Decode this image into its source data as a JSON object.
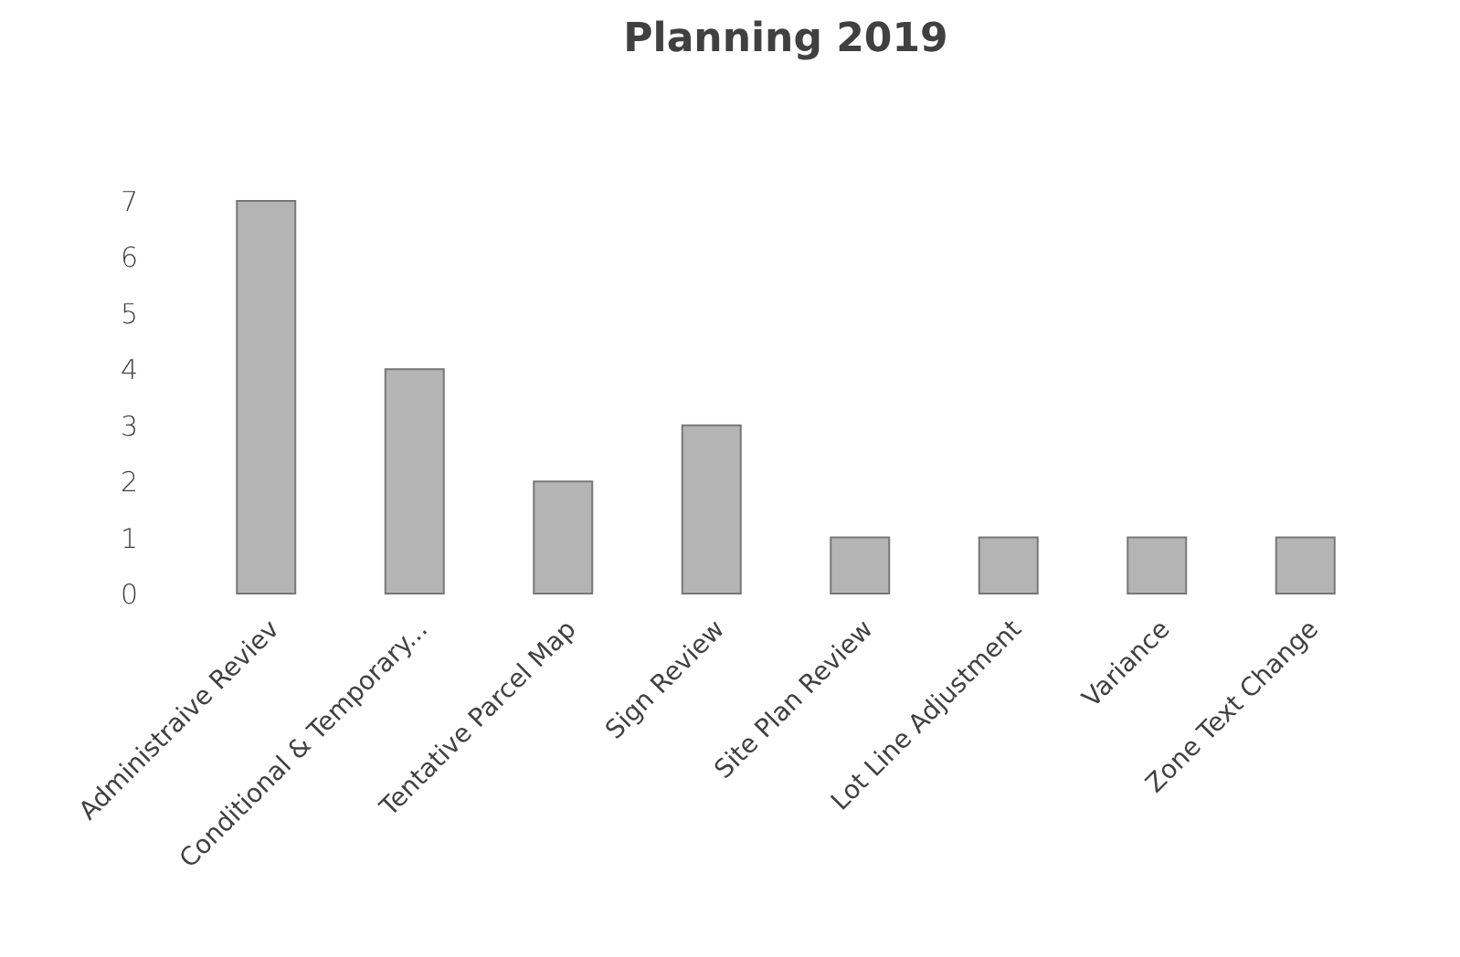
{
  "chart_data": {
    "type": "bar",
    "title": "Planning 2019",
    "categories": [
      "Administraive Reviev",
      "Conditional & Temporary...",
      "Tentative Parcel Map",
      "Sign Review",
      "Site Plan Review",
      "Lot Line Adjustment",
      "Variance",
      "Zone Text Change"
    ],
    "values": [
      7,
      4,
      2,
      3,
      1,
      1,
      1,
      1
    ],
    "color": "#b4b4b4",
    "ylim": [
      0,
      7
    ],
    "yticks": [
      0,
      1,
      2,
      3,
      4,
      5,
      6,
      7
    ],
    "grid": false
  }
}
